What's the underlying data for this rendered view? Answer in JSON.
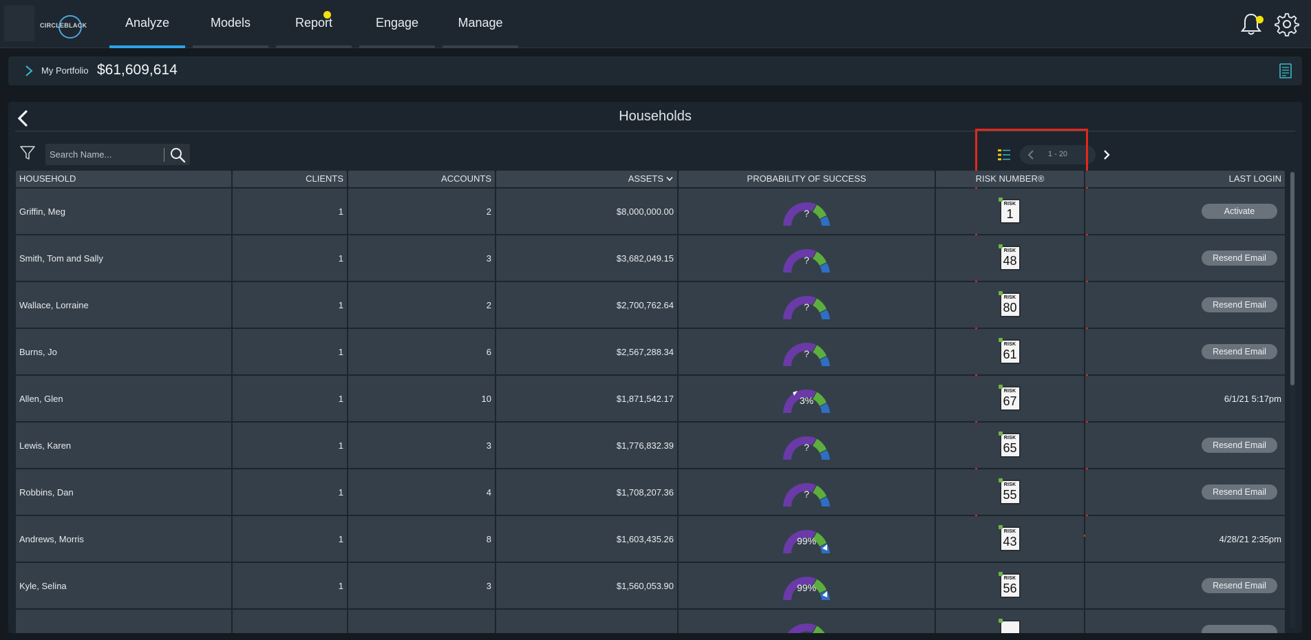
{
  "nav": {
    "logo_text": "CIRCLEBLACK",
    "tabs": [
      {
        "label": "Analyze",
        "active": true,
        "badge": false
      },
      {
        "label": "Models",
        "active": false,
        "badge": false
      },
      {
        "label": "Report",
        "active": false,
        "badge": true
      },
      {
        "label": "Engage",
        "active": false,
        "badge": false
      },
      {
        "label": "Manage",
        "active": false,
        "badge": false
      }
    ],
    "icons": [
      "bell-icon",
      "gear-icon"
    ]
  },
  "portfolio": {
    "label": "My Portfolio",
    "value": "$61,609,614"
  },
  "panel": {
    "title": "Households",
    "search_placeholder": "Search Name...",
    "pager_range": "1 - 20"
  },
  "table": {
    "columns": [
      "HOUSEHOLD",
      "CLIENTS",
      "ACCOUNTS",
      "ASSETS",
      "PROBABILITY OF SUCCESS",
      "RISK NUMBER®",
      "LAST LOGIN"
    ],
    "sort_column": "ASSETS",
    "rows": [
      {
        "household": "Griffin, Meg",
        "clients": "1",
        "accounts": "2",
        "assets": "$8,000,000.00",
        "pos": "?",
        "marker": "none",
        "risk_label": "RISK",
        "risk": "1",
        "login_type": "button",
        "login": "Activate"
      },
      {
        "household": "Smith, Tom and Sally",
        "clients": "1",
        "accounts": "3",
        "assets": "$3,682,049.15",
        "pos": "?",
        "marker": "none",
        "risk_label": "RISK",
        "risk": "48",
        "login_type": "button",
        "login": "Resend Email"
      },
      {
        "household": "Wallace, Lorraine",
        "clients": "1",
        "accounts": "2",
        "assets": "$2,700,762.64",
        "pos": "?",
        "marker": "none",
        "risk_label": "RISK",
        "risk": "80",
        "login_type": "button",
        "login": "Resend Email"
      },
      {
        "household": "Burns, Jo",
        "clients": "1",
        "accounts": "6",
        "assets": "$2,567,288.34",
        "pos": "?",
        "marker": "none",
        "risk_label": "RISK",
        "risk": "61",
        "login_type": "button",
        "login": "Resend Email"
      },
      {
        "household": "Allen, Glen",
        "clients": "1",
        "accounts": "10",
        "assets": "$1,871,542.17",
        "pos": "3%",
        "marker": "low",
        "risk_label": "RISK",
        "risk": "67",
        "login_type": "text",
        "login": "6/1/21 5:17pm"
      },
      {
        "household": "Lewis, Karen",
        "clients": "1",
        "accounts": "3",
        "assets": "$1,776,832.39",
        "pos": "?",
        "marker": "none",
        "risk_label": "RISK",
        "risk": "65",
        "login_type": "button",
        "login": "Resend Email"
      },
      {
        "household": "Robbins, Dan",
        "clients": "1",
        "accounts": "4",
        "assets": "$1,708,207.36",
        "pos": "?",
        "marker": "none",
        "risk_label": "RISK",
        "risk": "55",
        "login_type": "button",
        "login": "Resend Email"
      },
      {
        "household": "Andrews, Morris",
        "clients": "1",
        "accounts": "8",
        "assets": "$1,603,435.26",
        "pos": "99%",
        "marker": "high",
        "risk_label": "RISK",
        "risk": "43",
        "login_type": "text",
        "login": "4/28/21 2:35pm"
      },
      {
        "household": "Kyle, Selina",
        "clients": "1",
        "accounts": "3",
        "assets": "$1,560,053.90",
        "pos": "99%",
        "marker": "high",
        "risk_label": "RISK",
        "risk": "56",
        "login_type": "button",
        "login": "Resend Email"
      },
      {
        "household": "",
        "clients": "",
        "accounts": "",
        "assets": "",
        "pos": "",
        "marker": "none",
        "risk_label": "",
        "risk": "",
        "login_type": "button",
        "login": ""
      }
    ]
  },
  "colors": {
    "accent": "#2ba3e9",
    "badge": "#f3e20c",
    "gauge_purple": "#6a3aa8",
    "gauge_green": "#5cae3e",
    "gauge_blue": "#2e6fc4",
    "highlight": "#e3281a"
  }
}
